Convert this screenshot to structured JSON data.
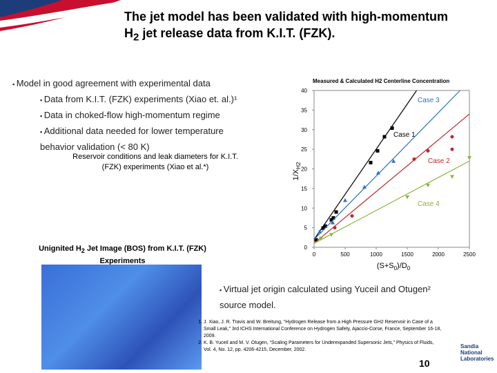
{
  "header": {
    "title": [
      "The jet model has been validated with high-momentum",
      "H",
      "2",
      " jet release data from K.I.T. (FZK)."
    ]
  },
  "bullets": {
    "main": "Model in good agreement with experimental data",
    "sub": [
      "Data from K.I.T. (FZK) experiments (Xiao et. al.)¹",
      "Data in choked-flow high-momentum regime",
      "Additional data needed for lower temperature behavior validation (< 80 K)"
    ]
  },
  "table_caption": "Reservoir conditions and leak diameters for K.I.T. (FZK) experiments (Xiao et al.*)",
  "image_caption": [
    "Unignited H",
    "2",
    " Jet Image (BOS) from K.I.T. (FZK) Experiments"
  ],
  "right_bullet": "Virtual jet origin calculated using Yuceil and Otugen² source model.",
  "references": [
    "J. Xiao, J. R. Travis and W. Breitung, “Hydrogen Release from a High Pressure GH2 Reservoir in Case of a Small Leak,” 3rd ICHS International Conference on Hydrogen Safety, Ajaccio-Corse, France, September 16-18, 2009.",
    "K. B. Yuceil and M. V. Otugen, “Scaling Parameters for Underexpanded Supersonic Jets,” Physics of Fluids, Vol. 4, No. 12, pp. 4206-4215, December, 2002."
  ],
  "page_number": "10",
  "logo": [
    "Sandia",
    "National",
    "Laboratories"
  ],
  "chart_data": {
    "type": "scatter",
    "title": "Measured & Calculated H2 Centerline Concentration",
    "ylabel": [
      "1/X",
      "H2"
    ],
    "xlabel": [
      "(S+S",
      "0",
      ")/D",
      "0"
    ],
    "xlim": [
      0,
      2500
    ],
    "ylim": [
      0,
      40
    ],
    "xticks": [
      0,
      500,
      1000,
      1500,
      2000,
      2500
    ],
    "yticks": [
      0,
      5,
      10,
      15,
      20,
      25,
      30,
      35,
      40
    ],
    "grid": false,
    "series": [
      {
        "name": "Case 1",
        "color": "#000000",
        "marker": "square",
        "x": [
          33,
          144,
          180,
          278,
          310,
          356,
          911,
          1022,
          1133,
          1256
        ],
        "values": [
          1.9,
          4.9,
          5.4,
          7,
          7.5,
          9,
          21.6,
          24.6,
          28.2,
          30.4
        ],
        "fit_x": [
          0,
          1650
        ],
        "fit_y": [
          2,
          40
        ]
      },
      {
        "name": "Case 2",
        "color": "#c0262d",
        "marker": "circle",
        "x": [
          333,
          611,
          1611,
          1833,
          2222,
          2222
        ],
        "values": [
          5,
          8,
          22.5,
          24.6,
          28.2,
          25
        ],
        "fit_x": [
          0,
          2500
        ],
        "fit_y": [
          1,
          34
        ]
      },
      {
        "name": "Case 3",
        "color": "#2f6fc2",
        "marker": "triangle",
        "x": [
          89,
          300,
          500,
          811,
          1033,
          1278
        ],
        "values": [
          4,
          6.3,
          12,
          15.4,
          19,
          22
        ],
        "fit_x": [
          0,
          2350
        ],
        "fit_y": [
          2,
          40
        ]
      },
      {
        "name": "Case 4",
        "color": "#8ab63a",
        "marker": "triangle-down",
        "x": [
          111,
          278,
          1500,
          1833,
          2222,
          2500
        ],
        "values": [
          2.3,
          3.2,
          12.8,
          15.8,
          18,
          22.8
        ],
        "fit_x": [
          0,
          2500
        ],
        "fit_y": [
          1,
          22
        ]
      }
    ]
  }
}
